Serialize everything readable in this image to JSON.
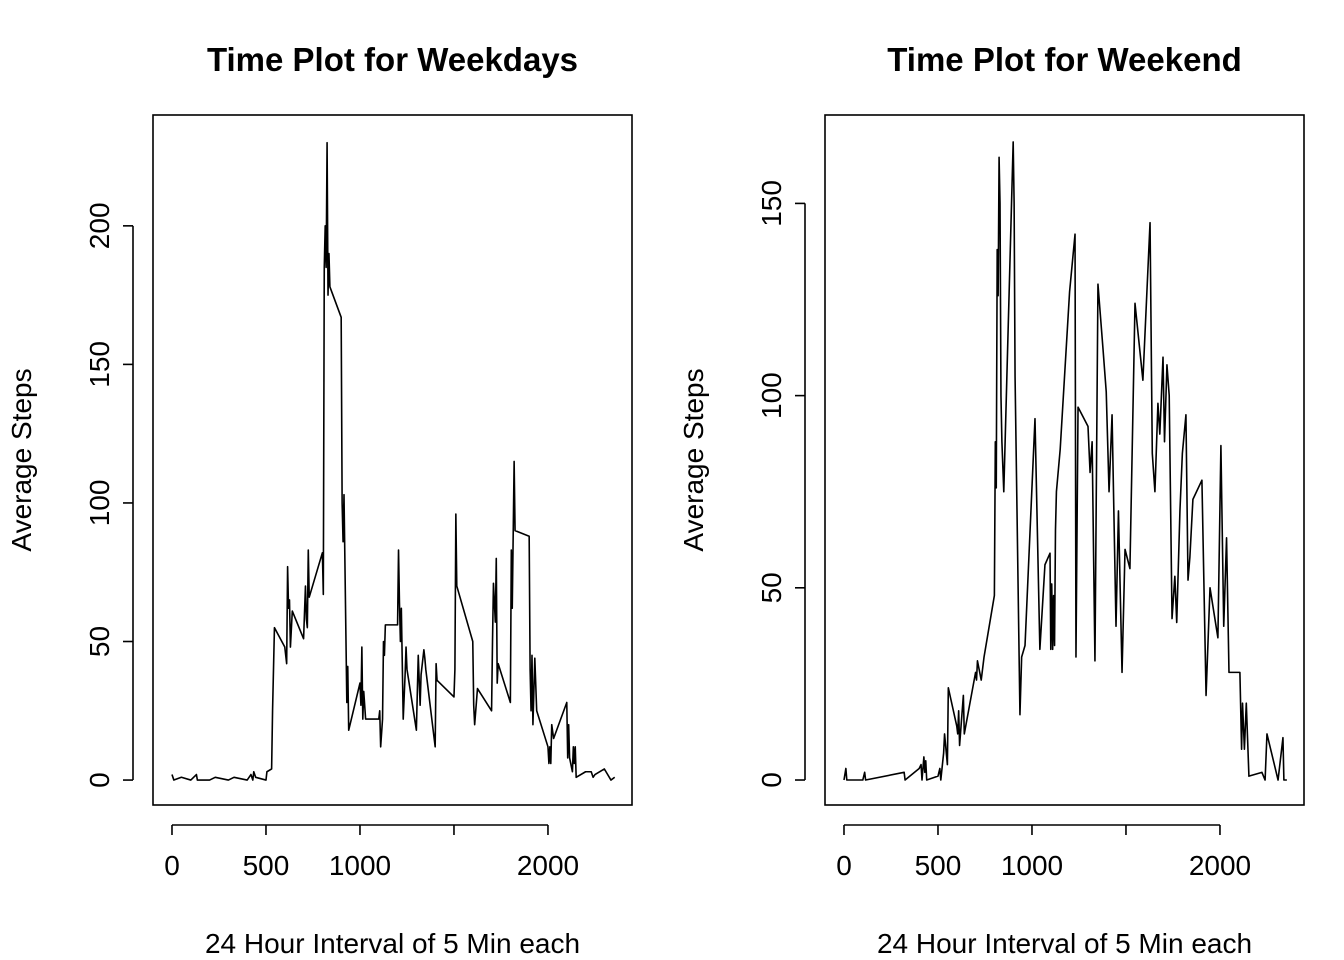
{
  "chart_data": [
    {
      "type": "line",
      "title": "Time Plot for Weekdays",
      "xlabel": "24 Hour Interval of 5 Min each",
      "ylabel": "Average Steps",
      "color": "#000000",
      "xlim": [
        -101,
        2447
      ],
      "ylim": [
        -9,
        240
      ],
      "xticks": [
        0,
        500,
        1000,
        {
          "value": 1500,
          "label": null
        },
        2000
      ],
      "yticks": [
        0,
        50,
        100,
        150,
        200
      ],
      "x": [
        0,
        10,
        50,
        100,
        130,
        135,
        200,
        230,
        300,
        330,
        400,
        420,
        430,
        435,
        445,
        500,
        505,
        530,
        535,
        545,
        600,
        610,
        615,
        620,
        625,
        630,
        640,
        700,
        710,
        715,
        720,
        725,
        730,
        800,
        805,
        810,
        815,
        820,
        825,
        830,
        835,
        840,
        900,
        905,
        910,
        915,
        930,
        935,
        940,
        1000,
        1005,
        1010,
        1015,
        1020,
        1030,
        1100,
        1105,
        1110,
        1120,
        1125,
        1130,
        1135,
        1200,
        1205,
        1210,
        1215,
        1220,
        1230,
        1240,
        1245,
        1250,
        1300,
        1310,
        1320,
        1325,
        1340,
        1345,
        1350,
        1400,
        1405,
        1410,
        1500,
        1505,
        1510,
        1515,
        1600,
        1605,
        1610,
        1625,
        1700,
        1705,
        1710,
        1720,
        1725,
        1730,
        1735,
        1800,
        1805,
        1810,
        1820,
        1825,
        1900,
        1905,
        1910,
        1915,
        1920,
        1930,
        1940,
        2000,
        2005,
        2010,
        2015,
        2020,
        2030,
        2100,
        2105,
        2110,
        2115,
        2130,
        2135,
        2140,
        2145,
        2150,
        2200,
        2230,
        2240,
        2250,
        2300,
        2335,
        2355
      ],
      "values": [
        2,
        0,
        1,
        0,
        2,
        0,
        0,
        1,
        0,
        1,
        0,
        2,
        0,
        3,
        1,
        0,
        3,
        4,
        25,
        55,
        48,
        42,
        77,
        62,
        65,
        48,
        61,
        51,
        70,
        58,
        55,
        83,
        66,
        82,
        67,
        185,
        200,
        185,
        230,
        175,
        190,
        178,
        167,
        100,
        86,
        103,
        28,
        41,
        18,
        35,
        27,
        48,
        22,
        32,
        22,
        22,
        25,
        12,
        22,
        50,
        45,
        56,
        56,
        83,
        64,
        50,
        62,
        22,
        38,
        48,
        40,
        18,
        45,
        27,
        38,
        47,
        44,
        40,
        12,
        42,
        36,
        30,
        40,
        96,
        70,
        50,
        27,
        20,
        33,
        25,
        50,
        71,
        57,
        80,
        35,
        42,
        28,
        83,
        62,
        115,
        90,
        88,
        40,
        25,
        45,
        20,
        44,
        25,
        12,
        6,
        12,
        6,
        20,
        15,
        28,
        8,
        20,
        8,
        3,
        12,
        6,
        12,
        1,
        3,
        3,
        1,
        2,
        4,
        0,
        1
      ]
    },
    {
      "type": "line",
      "title": "Time Plot  for Weekend",
      "xlabel": "24 Hour Interval of 5 Min each",
      "ylabel": "Average Steps",
      "color": "#000000",
      "xlim": [
        -101,
        2447
      ],
      "ylim": [
        -6.5,
        173
      ],
      "xticks": [
        0,
        500,
        1000,
        {
          "value": 1500,
          "label": null
        },
        2000
      ],
      "yticks": [
        0,
        50,
        100,
        150
      ],
      "x": [
        0,
        10,
        15,
        100,
        110,
        115,
        320,
        325,
        400,
        410,
        415,
        425,
        430,
        435,
        440,
        500,
        510,
        515,
        530,
        535,
        550,
        555,
        600,
        605,
        610,
        615,
        635,
        640,
        700,
        705,
        710,
        730,
        745,
        800,
        805,
        810,
        815,
        820,
        825,
        830,
        835,
        840,
        850,
        900,
        905,
        910,
        936,
        945,
        963,
        1016,
        1042,
        1069,
        1096,
        1100,
        1105,
        1110,
        1115,
        1120,
        1125,
        1130,
        1150,
        1200,
        1229,
        1234,
        1245,
        1298,
        1309,
        1320,
        1335,
        1351,
        1378,
        1395,
        1410,
        1426,
        1447,
        1460,
        1479,
        1495,
        1521,
        1548,
        1590,
        1628,
        1640,
        1654,
        1670,
        1680,
        1697,
        1705,
        1718,
        1730,
        1745,
        1760,
        1770,
        1787,
        1800,
        1819,
        1830,
        1840,
        1856,
        1904,
        1926,
        1947,
        1989,
        2005,
        2020,
        2035,
        2048,
        2106,
        2115,
        2120,
        2130,
        2140,
        2154,
        2223,
        2240,
        2250,
        2309,
        2335,
        2340,
        2356
      ],
      "values": [
        0,
        3,
        0,
        0,
        2,
        0,
        2,
        0,
        3,
        4,
        0,
        6,
        2,
        5,
        0,
        1,
        3,
        0,
        7,
        12,
        4,
        24,
        14,
        12,
        18,
        9,
        22,
        12,
        28,
        26,
        31,
        26,
        32,
        48,
        88,
        76,
        138,
        126,
        162,
        150,
        100,
        88,
        75,
        166,
        150,
        105,
        17,
        32,
        35,
        94,
        34,
        56,
        59,
        34,
        51,
        34,
        48,
        35,
        65,
        75,
        86,
        127,
        142,
        32,
        97,
        92,
        80,
        88,
        31,
        129,
        112,
        101,
        75,
        95,
        40,
        70,
        28,
        60,
        55,
        124,
        104,
        145,
        85,
        75,
        98,
        90,
        110,
        88,
        108,
        100,
        42,
        53,
        41,
        70,
        85,
        95,
        52,
        58,
        73,
        78,
        22,
        50,
        37,
        87,
        40,
        63,
        28,
        28,
        8,
        20,
        8,
        20,
        1,
        2,
        0,
        12,
        0,
        11,
        0,
        0
      ]
    }
  ]
}
